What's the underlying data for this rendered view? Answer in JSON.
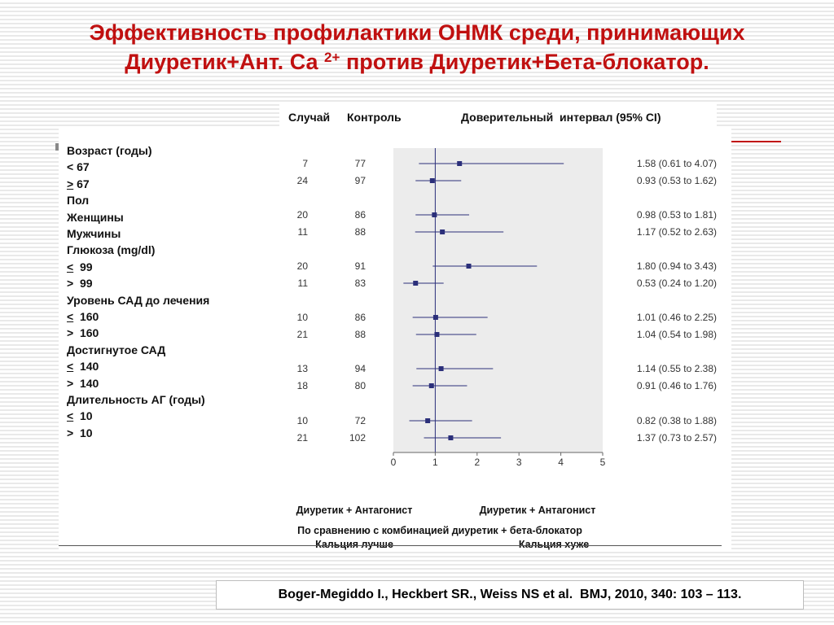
{
  "slide": {
    "title_line1": "Эффективность профилактики ОНМК среди, принимающих",
    "title_line2_a": "Диуретик+Ант. Са ",
    "title_line2_sup": "2+",
    "title_line2_b": " против Диуретик+Бета-блокатор."
  },
  "header": {
    "cases": "Случай",
    "controls": "Контроль",
    "ci": "Доверительный  интервал (95% CI)"
  },
  "labels": [
    {
      "text": "Возраст (годы)",
      "prefix": "",
      "underline": false
    },
    {
      "text": " 67",
      "prefix": "<",
      "underline": false
    },
    {
      "text": " 67",
      "prefix": ">",
      "underline": true
    },
    {
      "text": "Пол",
      "prefix": "",
      "underline": false
    },
    {
      "text": "Женщины",
      "prefix": "",
      "underline": false
    },
    {
      "text": "Мужчины",
      "prefix": "",
      "underline": false
    },
    {
      "text": "Глюкоза (mg/dl)",
      "prefix": "",
      "underline": false
    },
    {
      "text": "  99",
      "prefix": "<",
      "underline": true
    },
    {
      "text": "  99",
      "prefix": ">",
      "underline": false
    },
    {
      "text": "Уровень САД до лечения",
      "prefix": "",
      "underline": false
    },
    {
      "text": "  160",
      "prefix": "<",
      "underline": true
    },
    {
      "text": "  160",
      "prefix": ">",
      "underline": false
    },
    {
      "text": "Достигнутое САД",
      "prefix": "",
      "underline": false
    },
    {
      "text": "  140",
      "prefix": "<",
      "underline": true
    },
    {
      "text": "  140",
      "prefix": ">",
      "underline": false
    },
    {
      "text": "Длительность АГ (годы)",
      "prefix": "",
      "underline": false
    },
    {
      "text": "  10",
      "prefix": "<",
      "underline": true
    },
    {
      "text": "  10",
      "prefix": ">",
      "underline": false
    }
  ],
  "chart_data": {
    "type": "forest",
    "xlim": [
      0,
      5
    ],
    "x_ticks": [
      0,
      1,
      2,
      3,
      4,
      5
    ],
    "reference_line": 1,
    "rows": [
      {
        "cases": 7,
        "controls": 77,
        "est": 1.58,
        "lo": 0.61,
        "hi": 4.07,
        "ci_text": "1.58 (0.61 to 4.07)"
      },
      {
        "cases": 24,
        "controls": 97,
        "est": 0.93,
        "lo": 0.53,
        "hi": 1.62,
        "ci_text": "0.93 (0.53 to 1.62)"
      },
      {
        "cases": 20,
        "controls": 86,
        "est": 0.98,
        "lo": 0.53,
        "hi": 1.81,
        "ci_text": "0.98 (0.53 to 1.81)"
      },
      {
        "cases": 11,
        "controls": 88,
        "est": 1.17,
        "lo": 0.52,
        "hi": 2.63,
        "ci_text": "1.17 (0.52 to 2.63)"
      },
      {
        "cases": 20,
        "controls": 91,
        "est": 1.8,
        "lo": 0.94,
        "hi": 3.43,
        "ci_text": "1.80 (0.94 to 3.43)"
      },
      {
        "cases": 11,
        "controls": 83,
        "est": 0.53,
        "lo": 0.24,
        "hi": 1.2,
        "ci_text": "0.53 (0.24 to 1.20)"
      },
      {
        "cases": 10,
        "controls": 86,
        "est": 1.01,
        "lo": 0.46,
        "hi": 2.25,
        "ci_text": "1.01 (0.46 to 2.25)"
      },
      {
        "cases": 21,
        "controls": 88,
        "est": 1.04,
        "lo": 0.54,
        "hi": 1.98,
        "ci_text": "1.04 (0.54 to 1.98)"
      },
      {
        "cases": 13,
        "controls": 94,
        "est": 1.14,
        "lo": 0.55,
        "hi": 2.38,
        "ci_text": "1.14 (0.55 to 2.38)"
      },
      {
        "cases": 18,
        "controls": 80,
        "est": 0.91,
        "lo": 0.46,
        "hi": 1.76,
        "ci_text": "0.91 (0.46 to 1.76)"
      },
      {
        "cases": 10,
        "controls": 72,
        "est": 0.82,
        "lo": 0.38,
        "hi": 1.88,
        "ci_text": "0.82 (0.38 to 1.88)"
      },
      {
        "cases": 21,
        "controls": 102,
        "est": 1.37,
        "lo": 0.73,
        "hi": 2.57,
        "ci_text": "1.37 (0.73 to 2.57)"
      }
    ],
    "colors": {
      "marker": "#2b2f7a",
      "plot_bg": "#ececec",
      "text": "#333333"
    }
  },
  "captions": {
    "left_line1": "Диуретик + Антагонист",
    "left_line2": "Кальция лучше",
    "right_line1": "Диуретик + Антагонист",
    "right_line2": "Кальция хуже",
    "comparison": "По сравнению с комбинацией диуретик + бета-блокатор"
  },
  "reference": "Boger-Megiddo I., Heckbert SR., Weiss NS et al.  BMJ, 2010, 340: 103 – 113."
}
